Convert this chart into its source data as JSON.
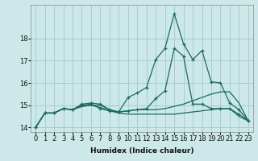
{
  "title": "",
  "xlabel": "Humidex (Indice chaleur)",
  "ylabel": "",
  "background_color": "#cce8e8",
  "grid_color": "#aacccc",
  "line_color": "#1a6b60",
  "xlim": [
    -0.5,
    23.5
  ],
  "ylim": [
    13.8,
    19.5
  ],
  "yticks": [
    14,
    15,
    16,
    17,
    18
  ],
  "xticks": [
    0,
    1,
    2,
    3,
    4,
    5,
    6,
    7,
    8,
    9,
    10,
    11,
    12,
    13,
    14,
    15,
    16,
    17,
    18,
    19,
    20,
    21,
    22,
    23
  ],
  "series1": [
    14.0,
    14.65,
    14.65,
    14.85,
    14.8,
    15.05,
    15.1,
    15.05,
    14.8,
    14.7,
    15.35,
    15.55,
    15.8,
    17.05,
    17.55,
    19.1,
    17.75,
    17.05,
    17.45,
    16.05,
    16.0,
    15.1,
    14.8,
    14.3
  ],
  "series2": [
    14.0,
    14.65,
    14.65,
    14.85,
    14.8,
    15.0,
    15.05,
    14.85,
    14.75,
    14.7,
    14.75,
    14.8,
    14.85,
    15.3,
    15.65,
    17.55,
    17.2,
    15.05,
    15.05,
    14.85,
    14.85,
    14.85,
    14.6,
    14.3
  ],
  "series3": [
    14.0,
    14.65,
    14.65,
    14.85,
    14.8,
    14.95,
    15.0,
    15.0,
    14.8,
    14.7,
    14.75,
    14.8,
    14.8,
    14.8,
    14.85,
    14.95,
    15.05,
    15.2,
    15.35,
    15.5,
    15.6,
    15.6,
    15.1,
    14.3
  ],
  "series4": [
    14.0,
    14.65,
    14.65,
    14.85,
    14.8,
    14.95,
    15.0,
    14.9,
    14.75,
    14.65,
    14.6,
    14.6,
    14.6,
    14.6,
    14.6,
    14.6,
    14.65,
    14.7,
    14.75,
    14.8,
    14.85,
    14.85,
    14.5,
    14.3
  ]
}
